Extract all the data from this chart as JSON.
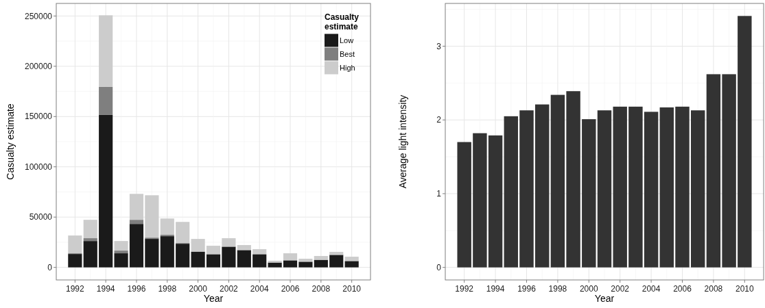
{
  "chart_data": [
    {
      "type": "bar",
      "stacked": true,
      "xlabel": "Year",
      "ylabel": "Casualty estimate",
      "legend_title": "Casualty estimate",
      "legend": "top right",
      "grid": true,
      "categories": [
        "1992",
        null,
        "1994",
        null,
        "1996",
        null,
        "1998",
        null,
        "2000",
        null,
        "2002",
        null,
        "2004",
        null,
        "2006",
        null,
        "2008",
        null,
        "2010"
      ],
      "ylim": [
        -12500,
        262500
      ],
      "yticks": [
        0,
        50000,
        100000,
        150000,
        200000,
        250000
      ],
      "series": [
        {
          "name": "Low",
          "color": "#1a1a1a",
          "values": [
            13300,
            26200,
            151600,
            14000,
            43200,
            28300,
            31000,
            23500,
            15400,
            12900,
            20400,
            17000,
            12700,
            4800,
            6600,
            5400,
            7500,
            12200,
            6100
          ]
        },
        {
          "name": "Best",
          "color": "#7f7f7f",
          "values": [
            700,
            2800,
            28000,
            2700,
            4100,
            1300,
            1400,
            700,
            400,
            400,
            400,
            600,
            600,
            0,
            600,
            700,
            0,
            700,
            500
          ]
        },
        {
          "name": "High",
          "color": "#cccccc",
          "values": [
            17700,
            18300,
            71100,
            9500,
            25800,
            42100,
            16200,
            21000,
            12500,
            8200,
            8200,
            4600,
            4800,
            1800,
            6800,
            2500,
            3800,
            2500,
            4000
          ]
        }
      ]
    },
    {
      "type": "bar",
      "xlabel": "Year",
      "ylabel": "Average light intensity",
      "grid": true,
      "categories": [
        "1992",
        null,
        "1994",
        null,
        "1996",
        null,
        "1998",
        null,
        "2000",
        null,
        "2002",
        null,
        "2004",
        null,
        "2006",
        null,
        "2008",
        null,
        "2010"
      ],
      "ylim": [
        -0.17,
        3.58
      ],
      "yticks": [
        0,
        1,
        2,
        3
      ],
      "series": [
        {
          "color": "#333333",
          "values": [
            1.7,
            1.82,
            1.79,
            2.05,
            2.13,
            2.21,
            2.34,
            2.39,
            2.01,
            2.13,
            2.18,
            2.18,
            2.11,
            2.17,
            2.18,
            2.13,
            2.62,
            2.62,
            3.41
          ]
        }
      ]
    }
  ]
}
